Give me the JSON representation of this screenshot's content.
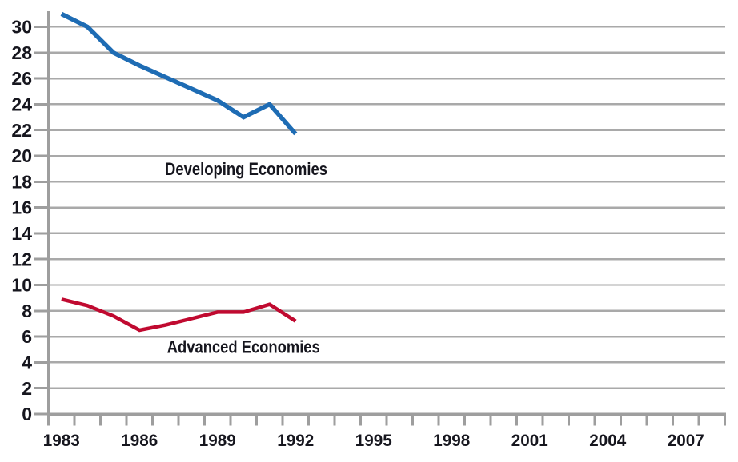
{
  "chart_data": {
    "type": "line",
    "title": "",
    "xlabel": "",
    "ylabel": "",
    "grid": {
      "horizontal": true,
      "vertical": false
    },
    "legend": "inline-series-labels",
    "categories": [
      1983,
      1984,
      1985,
      1986,
      1987,
      1988,
      1989,
      1990,
      1991,
      1992
    ],
    "series": [
      {
        "name": "Developing Economies",
        "color": "#1e6cb4",
        "values": [
          31,
          30,
          28,
          27,
          26.1,
          25.2,
          24.3,
          23,
          24,
          21.7
        ]
      },
      {
        "name": "Advanced Economies",
        "color": "#c00a30",
        "values": [
          8.9,
          8.4,
          7.6,
          6.5,
          6.9,
          7.4,
          7.9,
          7.9,
          8.5,
          7.2
        ]
      }
    ],
    "annotations": [
      {
        "text": "Developing Economies",
        "year": 1990.1,
        "value": 19.0
      },
      {
        "text": "Advanced Economies",
        "year": 1990.0,
        "value": 5.2
      }
    ],
    "x_axis": {
      "first_year": 1983,
      "last_year": 2008,
      "tick_every_years": 1,
      "tick_position": "between-categories",
      "label_years": [
        "1983",
        "1986",
        "1989",
        "1992",
        "1995",
        "1998",
        "2001",
        "2004",
        "2007"
      ]
    },
    "y_axis": {
      "min": 0,
      "max": 31.2,
      "label_step": 2,
      "labels": [
        "0",
        "2",
        "4",
        "6",
        "8",
        "10",
        "12",
        "14",
        "16",
        "18",
        "20",
        "22",
        "24",
        "26",
        "28",
        "30"
      ]
    },
    "colors": {
      "grid": "#a9a9a9",
      "axis": "#9e9e9e",
      "text": "#16161e",
      "background": "#ffffff"
    }
  }
}
